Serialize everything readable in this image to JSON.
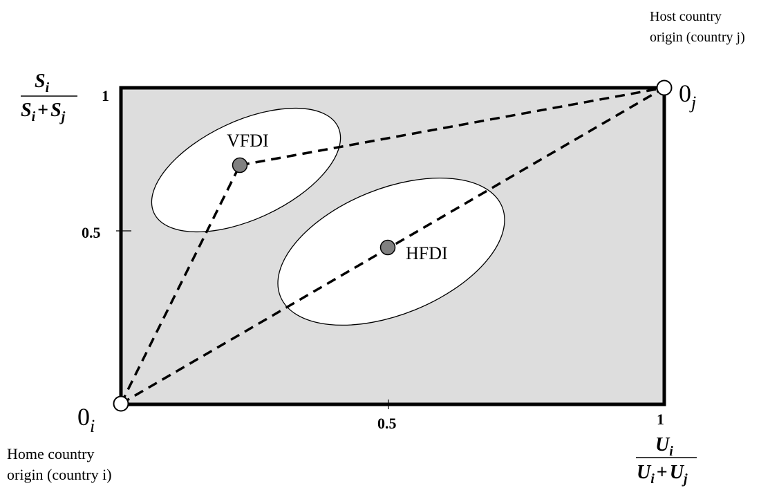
{
  "diagram": {
    "y_axis_label": {
      "numerator": "S",
      "numerator_sub": "i",
      "denominator": "S",
      "denominator_sub1": "i",
      "plus": "+",
      "denominator2": "S",
      "denominator_sub2": "j"
    },
    "x_axis_label": {
      "numerator": "U",
      "numerator_sub": "i",
      "denominator": "U",
      "denominator_sub1": "i",
      "plus": "+",
      "denominator2": "U",
      "denominator_sub2": "j"
    },
    "y_ticks": [
      "1",
      "0.5"
    ],
    "x_ticks": [
      "0.5",
      "1"
    ],
    "origin_i": {
      "main": "0",
      "sub": "i",
      "caption_line1": "Home country",
      "caption_line2": "origin (country i)"
    },
    "origin_j": {
      "main": "0",
      "sub": "j",
      "caption_line1": "Host country",
      "caption_line2": "origin (country j)"
    },
    "points": [
      {
        "label": "VFDI",
        "x": 0.22,
        "y": 0.76
      },
      {
        "label": "HFDI",
        "x": 0.5,
        "y": 0.45
      }
    ],
    "colors": {
      "box_fill": "#dddddd",
      "point_fill": "#808080",
      "ellipse_fill": "#ffffff",
      "stroke": "#000000"
    }
  }
}
